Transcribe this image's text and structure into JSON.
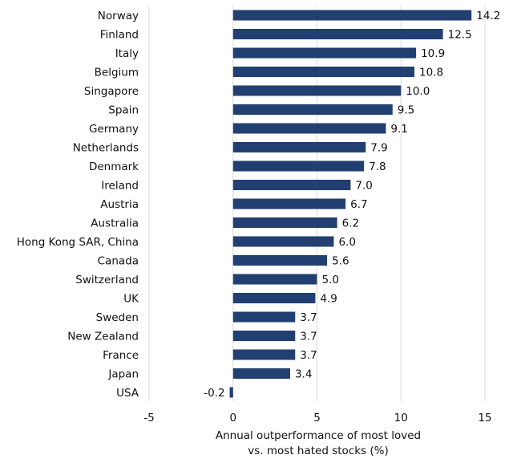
{
  "chart_data": {
    "type": "bar",
    "orientation": "horizontal",
    "categories": [
      "Norway",
      "Finland",
      "Italy",
      "Belgium",
      "Singapore",
      "Spain",
      "Germany",
      "Netherlands",
      "Denmark",
      "Ireland",
      "Austria",
      "Australia",
      "Hong Kong SAR, China",
      "Canada",
      "Switzerland",
      "UK",
      "Sweden",
      "New Zealand",
      "France",
      "Japan",
      "USA"
    ],
    "values": [
      14.2,
      12.5,
      10.9,
      10.8,
      10.0,
      9.5,
      9.1,
      7.9,
      7.8,
      7.0,
      6.7,
      6.2,
      6.0,
      5.6,
      5.0,
      4.9,
      3.7,
      3.7,
      3.7,
      3.4,
      -0.2
    ],
    "value_labels": [
      "14.2",
      "12.5",
      "10.9",
      "10.8",
      "10.0",
      "9.5",
      "9.1",
      "7.9",
      "7.8",
      "7.0",
      "6.7",
      "6.2",
      "6.0",
      "5.6",
      "5.0",
      "4.9",
      "3.7",
      "3.7",
      "3.7",
      "3.4",
      "-0.2"
    ],
    "xlim": [
      -5,
      15
    ],
    "xticks": [
      -5,
      0,
      5,
      10,
      15
    ],
    "xtick_labels": [
      "-5",
      "0",
      "5",
      "10",
      "15"
    ],
    "xlabel": [
      "Annual outperformance of most loved",
      "vs. most hated stocks (%)"
    ],
    "ylabel": "",
    "title": "",
    "grid": "vertical",
    "legend": "none",
    "bar_color": "#223f72",
    "grid_color": "#d9d9d9"
  }
}
